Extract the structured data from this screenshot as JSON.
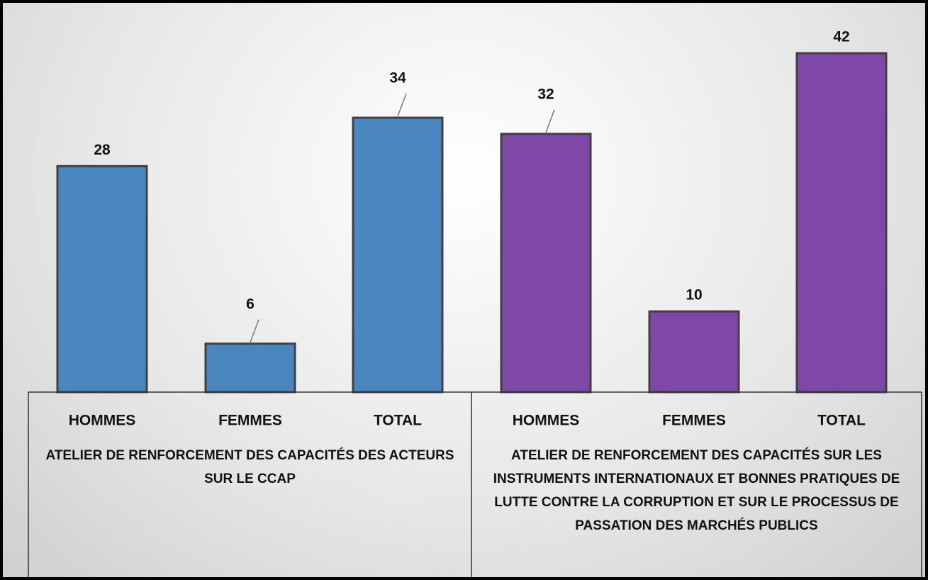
{
  "chart_data": {
    "type": "bar",
    "groups": [
      {
        "label": "ATELIER DE RENFORCEMENT DES CAPACITÉS DES ACTEURS SUR LE CCAP",
        "categories": [
          "HOMMES",
          "FEMMES",
          "TOTAL"
        ],
        "values": [
          28,
          6,
          34
        ],
        "color": "#4a86c0"
      },
      {
        "label": "ATELIER DE RENFORCEMENT DES CAPACITÉS SUR LES INSTRUMENTS INTERNATIONAUX ET BONNES PRATIQUES DE LUTTE CONTRE LA CORRUPTION ET SUR LE PROCESSUS DE PASSATION DES MARCHÉS PUBLICS",
        "categories": [
          "HOMMES",
          "FEMMES",
          "TOTAL"
        ],
        "values": [
          32,
          10,
          42
        ],
        "color": "#7f48a8"
      }
    ]
  }
}
